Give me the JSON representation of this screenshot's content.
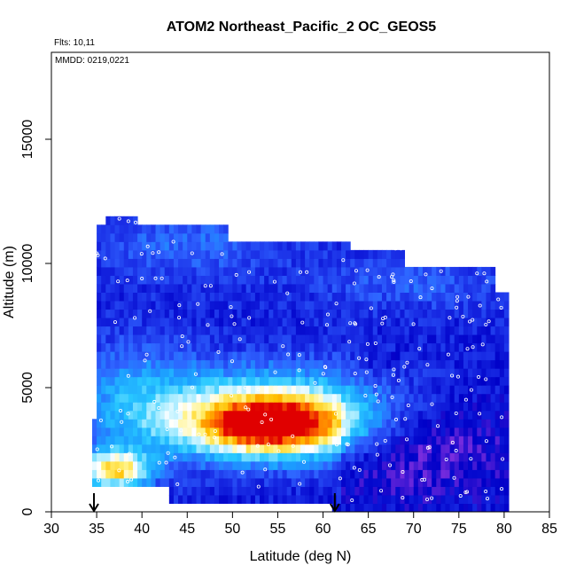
{
  "chart_data": {
    "type": "heatmap",
    "title": "ATOM2 Northeast_Pacific_2 OC_GEOS5",
    "annotations": {
      "flights": "Flts: 10,11",
      "dates": "MMDD: 0219,0221"
    },
    "xlabel": "Latitude (deg N)",
    "ylabel": "Altitude (m)",
    "xlim": [
      30,
      85
    ],
    "ylim": [
      0,
      18500
    ],
    "x_ticks": [
      30,
      35,
      40,
      45,
      50,
      55,
      60,
      65,
      70,
      75,
      80,
      85
    ],
    "x_tick_labels": [
      "30",
      "35",
      "40",
      "45",
      "50",
      "55",
      "60",
      "65",
      "70",
      "75",
      "80",
      "85"
    ],
    "y_ticks": [
      0,
      5000,
      10000,
      15000
    ],
    "y_tick_labels": [
      "0",
      "5000",
      "10000",
      "15000"
    ],
    "grid": false,
    "colormap": [
      "#6a0dad",
      "#7f2fdf",
      "#0000c8",
      "#1a2ee6",
      "#2f63ff",
      "#1c9cff",
      "#28c8ff",
      "#a8ecff",
      "#ffffff",
      "#fff070",
      "#ffc000",
      "#ff7000",
      "#e00000"
    ],
    "arrow_markers_latitude": [
      34.7,
      61.3
    ],
    "data_range": {
      "latitude": [
        34.5,
        80.5
      ],
      "altitude": [
        500,
        12000
      ]
    }
  }
}
